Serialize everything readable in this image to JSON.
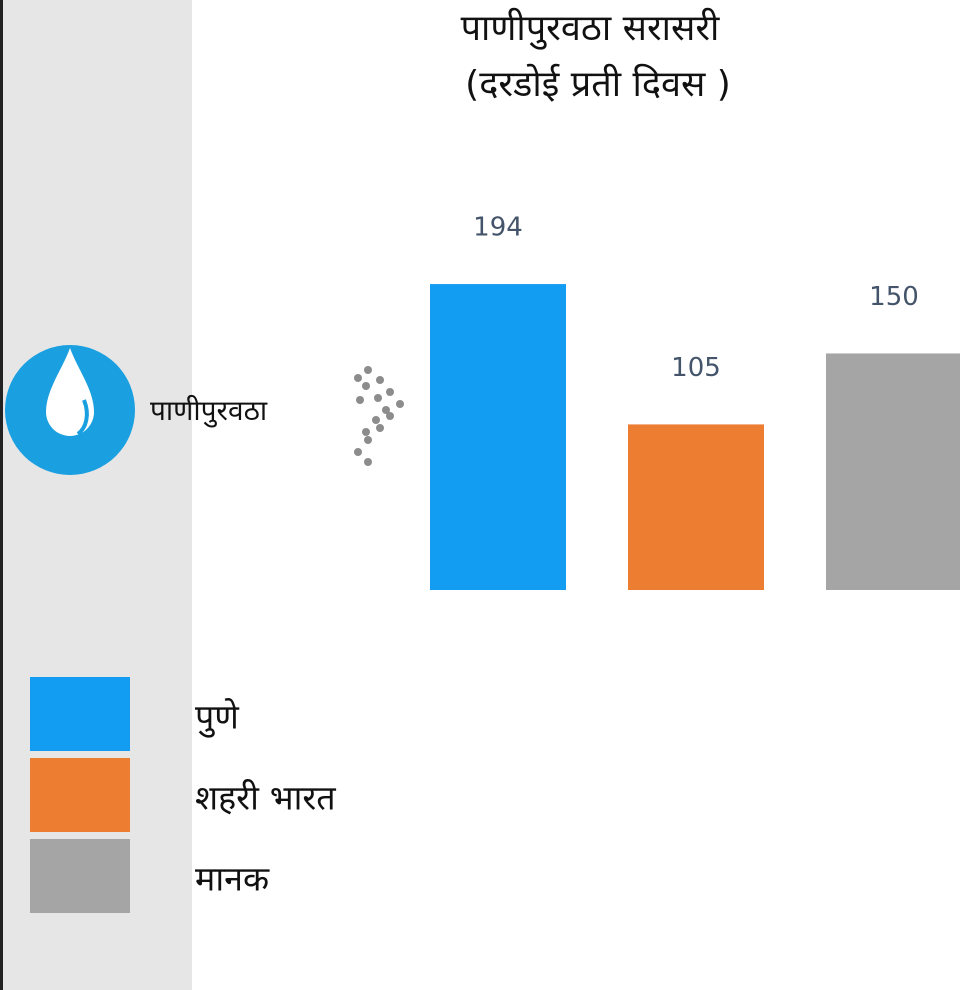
{
  "chart_data": {
    "type": "bar",
    "title": "पाणीपुरवठा सरासरी",
    "subtitle": "(दरडोई प्रती दिवस )",
    "annotation": "पाणीपुरवठा",
    "categories": [
      "पुणे",
      "शहरी भारत",
      "मानक"
    ],
    "values": [
      194,
      105,
      150
    ],
    "colors": [
      "#139df2",
      "#ed7d31",
      "#a5a5a5"
    ],
    "legend": true
  }
}
